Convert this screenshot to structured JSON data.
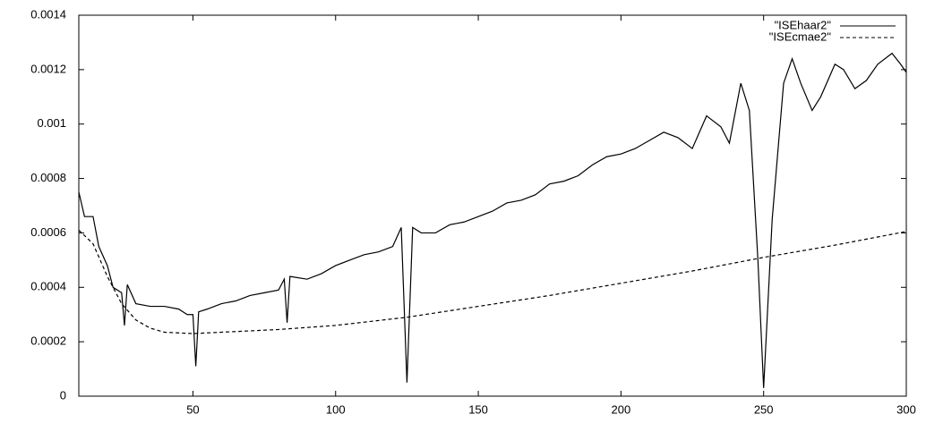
{
  "chart_data": {
    "type": "line",
    "xlim": [
      10,
      300
    ],
    "xticks": [
      50,
      100,
      150,
      200,
      250,
      300
    ],
    "ylim": [
      0,
      0.0014
    ],
    "yticks": [
      0,
      0.0002,
      0.0004,
      0.0006,
      0.0008,
      0.001,
      0.0012,
      0.0014
    ],
    "legend": "top-right",
    "series": [
      {
        "name": "\"ISEhaar2\"",
        "color": "#000000",
        "dash": "solid",
        "x": [
          10,
          12,
          15,
          17,
          20,
          22,
          25,
          26,
          27,
          30,
          35,
          40,
          45,
          48,
          50,
          51,
          52,
          55,
          60,
          65,
          70,
          75,
          80,
          82,
          83,
          84,
          90,
          95,
          100,
          105,
          110,
          115,
          120,
          123,
          125,
          127,
          130,
          135,
          140,
          145,
          150,
          155,
          160,
          165,
          170,
          175,
          180,
          185,
          190,
          195,
          200,
          205,
          210,
          215,
          220,
          225,
          230,
          235,
          238,
          242,
          245,
          248,
          250,
          253,
          257,
          260,
          263,
          267,
          270,
          275,
          278,
          282,
          286,
          290,
          295,
          298,
          300
        ],
        "values": [
          0.00075,
          0.00066,
          0.00066,
          0.00055,
          0.00048,
          0.0004,
          0.00038,
          0.00026,
          0.00041,
          0.00034,
          0.00033,
          0.00033,
          0.00032,
          0.0003,
          0.0003,
          0.00011,
          0.00031,
          0.00032,
          0.00034,
          0.00035,
          0.00037,
          0.00038,
          0.00039,
          0.00043,
          0.00027,
          0.00044,
          0.00043,
          0.00045,
          0.00048,
          0.0005,
          0.00052,
          0.00053,
          0.00055,
          0.00062,
          5e-05,
          0.00062,
          0.0006,
          0.0006,
          0.00063,
          0.00064,
          0.00066,
          0.00068,
          0.00071,
          0.00072,
          0.00074,
          0.00078,
          0.00079,
          0.00081,
          0.00085,
          0.00088,
          0.00089,
          0.00091,
          0.00094,
          0.00097,
          0.00095,
          0.00091,
          0.00103,
          0.00099,
          0.00093,
          0.00115,
          0.00105,
          0.0005,
          3e-05,
          0.00065,
          0.00115,
          0.00124,
          0.00115,
          0.00105,
          0.0011,
          0.00122,
          0.0012,
          0.00113,
          0.00116,
          0.00122,
          0.00126,
          0.00122,
          0.00119
        ]
      },
      {
        "name": "\"ISEcmae2\"",
        "color": "#000000",
        "dash": "dashed",
        "x": [
          10,
          15,
          20,
          25,
          30,
          35,
          40,
          50,
          60,
          80,
          100,
          125,
          150,
          175,
          200,
          225,
          250,
          275,
          300
        ],
        "values": [
          0.00061,
          0.00056,
          0.00044,
          0.00034,
          0.00028,
          0.00025,
          0.000235,
          0.00023,
          0.000235,
          0.000245,
          0.00026,
          0.00029,
          0.00033,
          0.00037,
          0.000415,
          0.00046,
          0.00051,
          0.000555,
          0.000605
        ]
      }
    ]
  }
}
